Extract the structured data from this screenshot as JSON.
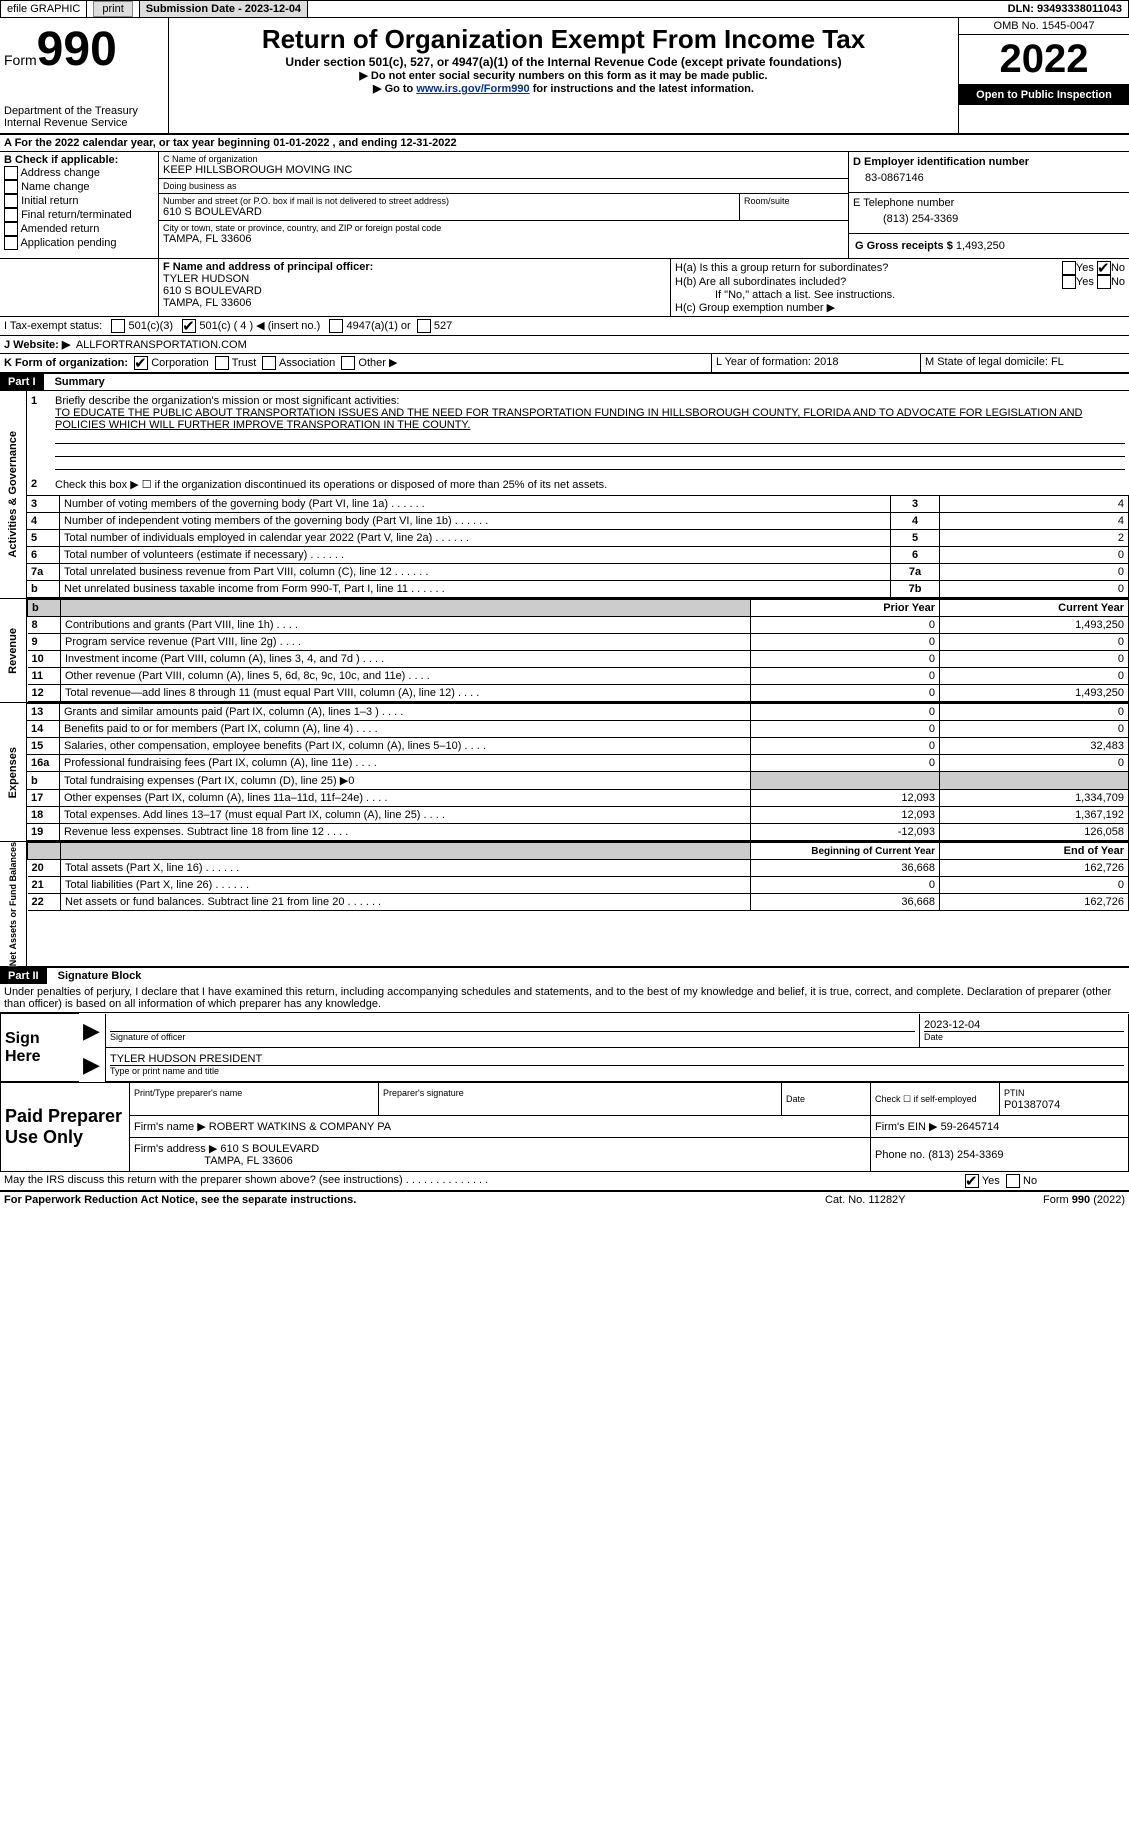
{
  "topbar": {
    "efile": "efile GRAPHIC",
    "print": "print",
    "subdate_label": "Submission Date - 2023-12-04",
    "dln_label": "DLN: 93493338011043"
  },
  "header": {
    "form_word": "Form",
    "form_num": "990",
    "title": "Return of Organization Exempt From Income Tax",
    "subtitle": "Under section 501(c), 527, or 4947(a)(1) of the Internal Revenue Code (except private foundations)",
    "note1": "▶ Do not enter social security numbers on this form as it may be made public.",
    "note2_pre": "▶ Go to ",
    "note2_link": "www.irs.gov/Form990",
    "note2_post": " for instructions and the latest information.",
    "omb": "OMB No. 1545-0047",
    "year": "2022",
    "inspection": "Open to Public Inspection",
    "dept": "Department of the Treasury",
    "irs": "Internal Revenue Service"
  },
  "lineA": "A For the 2022 calendar year, or tax year beginning 01-01-2022    , and ending 12-31-2022",
  "boxB": {
    "label": "B Check if applicable:",
    "items": [
      "Address change",
      "Name change",
      "Initial return",
      "Final return/terminated",
      "Amended return",
      "Application pending"
    ]
  },
  "boxC": {
    "name_label": "C Name of organization",
    "name": "KEEP HILLSBOROUGH MOVING INC",
    "dba_label": "Doing business as",
    "dba": "",
    "addr_label": "Number and street (or P.O. box if mail is not delivered to street address)",
    "addr": "610 S BOULEVARD",
    "room_label": "Room/suite",
    "city_label": "City or town, state or province, country, and ZIP or foreign postal code",
    "city": "TAMPA, FL  33606"
  },
  "boxD": {
    "label": "D Employer identification number",
    "value": "83-0867146"
  },
  "boxE": {
    "label": "E Telephone number",
    "value": "(813) 254-3369"
  },
  "boxG": {
    "label": "G Gross receipts $",
    "value": "1,493,250"
  },
  "boxF": {
    "label": "F Name and address of principal officer:",
    "name": "TYLER HUDSON",
    "addr": "610 S BOULEVARD",
    "city": "TAMPA, FL  33606"
  },
  "boxH": {
    "a": "H(a)  Is this a group return for subordinates?",
    "b": "H(b)  Are all subordinates included?",
    "note": "If \"No,\" attach a list. See instructions.",
    "c": "H(c)  Group exemption number ▶"
  },
  "yes": "Yes",
  "no": "No",
  "boxI": {
    "label": "I   Tax-exempt status:",
    "c3": "501(c)(3)",
    "c": "501(c) ( 4 ) ◀ (insert no.)",
    "a1": "4947(a)(1) or",
    "527": "527"
  },
  "boxJ": {
    "label": "J   Website: ▶",
    "value": "ALLFORTRANSPORTATION.COM"
  },
  "boxK": {
    "label": "K Form of organization:",
    "corp": "Corporation",
    "trust": "Trust",
    "assoc": "Association",
    "other": "Other ▶"
  },
  "boxL": {
    "label": "L Year of formation: 2018"
  },
  "boxM": {
    "label": "M State of legal domicile: FL"
  },
  "part1": {
    "label": "Part I",
    "title": "Summary"
  },
  "summary": {
    "l1_label": "Briefly describe the organization's mission or most significant activities:",
    "l1_text": "TO EDUCATE THE PUBLIC ABOUT TRANSPORTATION ISSUES AND THE NEED FOR TRANSPORTATION FUNDING IN HILLSBOROUGH COUNTY, FLORIDA AND TO ADVOCATE FOR LEGISLATION AND POLICIES WHICH WILL FURTHER IMPROVE TRANSPORATION IN THE COUNTY.",
    "l2": "Check this box ▶ ☐ if the organization discontinued its operations or disposed of more than 25% of its net assets.",
    "rows": [
      {
        "n": "3",
        "label": "Number of voting members of the governing body (Part VI, line 1a)",
        "box": "3",
        "val": "4"
      },
      {
        "n": "4",
        "label": "Number of independent voting members of the governing body (Part VI, line 1b)",
        "box": "4",
        "val": "4"
      },
      {
        "n": "5",
        "label": "Total number of individuals employed in calendar year 2022 (Part V, line 2a)",
        "box": "5",
        "val": "2"
      },
      {
        "n": "6",
        "label": "Total number of volunteers (estimate if necessary)",
        "box": "6",
        "val": "0"
      },
      {
        "n": "7a",
        "label": "Total unrelated business revenue from Part VIII, column (C), line 12",
        "box": "7a",
        "val": "0"
      },
      {
        "n": "b",
        "label": "Net unrelated business taxable income from Form 990-T, Part I, line 11",
        "box": "7b",
        "val": "0"
      }
    ],
    "prior_year": "Prior Year",
    "current_year": "Current Year",
    "revenue_rows": [
      {
        "n": "8",
        "label": "Contributions and grants (Part VIII, line 1h)",
        "py": "0",
        "cy": "1,493,250"
      },
      {
        "n": "9",
        "label": "Program service revenue (Part VIII, line 2g)",
        "py": "0",
        "cy": "0"
      },
      {
        "n": "10",
        "label": "Investment income (Part VIII, column (A), lines 3, 4, and 7d )",
        "py": "0",
        "cy": "0"
      },
      {
        "n": "11",
        "label": "Other revenue (Part VIII, column (A), lines 5, 6d, 8c, 9c, 10c, and 11e)",
        "py": "0",
        "cy": "0"
      },
      {
        "n": "12",
        "label": "Total revenue—add lines 8 through 11 (must equal Part VIII, column (A), line 12)",
        "py": "0",
        "cy": "1,493,250"
      }
    ],
    "expense_rows": [
      {
        "n": "13",
        "label": "Grants and similar amounts paid (Part IX, column (A), lines 1–3 )",
        "py": "0",
        "cy": "0"
      },
      {
        "n": "14",
        "label": "Benefits paid to or for members (Part IX, column (A), line 4)",
        "py": "0",
        "cy": "0"
      },
      {
        "n": "15",
        "label": "Salaries, other compensation, employee benefits (Part IX, column (A), lines 5–10)",
        "py": "0",
        "cy": "32,483"
      },
      {
        "n": "16a",
        "label": "Professional fundraising fees (Part IX, column (A), line 11e)",
        "py": "0",
        "cy": "0"
      },
      {
        "n": "b",
        "label": "Total fundraising expenses (Part IX, column (D), line 25) ▶0",
        "py": "",
        "cy": "",
        "shaded": true
      },
      {
        "n": "17",
        "label": "Other expenses (Part IX, column (A), lines 11a–11d, 11f–24e)",
        "py": "12,093",
        "cy": "1,334,709"
      },
      {
        "n": "18",
        "label": "Total expenses. Add lines 13–17 (must equal Part IX, column (A), line 25)",
        "py": "12,093",
        "cy": "1,367,192"
      },
      {
        "n": "19",
        "label": "Revenue less expenses. Subtract line 18 from line 12",
        "py": "-12,093",
        "cy": "126,058"
      }
    ],
    "boy": "Beginning of Current Year",
    "eoy": "End of Year",
    "netassets_rows": [
      {
        "n": "20",
        "label": "Total assets (Part X, line 16)",
        "py": "36,668",
        "cy": "162,726"
      },
      {
        "n": "21",
        "label": "Total liabilities (Part X, line 26)",
        "py": "0",
        "cy": "0"
      },
      {
        "n": "22",
        "label": "Net assets or fund balances. Subtract line 21 from line 20",
        "py": "36,668",
        "cy": "162,726"
      }
    ]
  },
  "sidebar": {
    "activities": "Activities & Governance",
    "revenue": "Revenue",
    "expenses": "Expenses",
    "netassets": "Net Assets or Fund Balances"
  },
  "part2": {
    "label": "Part II",
    "title": "Signature Block"
  },
  "perjury": "Under penalties of perjury, I declare that I have examined this return, including accompanying schedules and statements, and to the best of my knowledge and belief, it is true, correct, and complete. Declaration of preparer (other than officer) is based on all information of which preparer has any knowledge.",
  "sign": {
    "here": "Sign Here",
    "sig_officer": "Signature of officer",
    "date": "Date",
    "date_val": "2023-12-04",
    "name_title": "TYLER HUDSON  PRESIDENT",
    "type_name": "Type or print name and title"
  },
  "paid": {
    "label": "Paid Preparer Use Only",
    "print_name": "Print/Type preparer's name",
    "prep_sig": "Preparer's signature",
    "date": "Date",
    "check_self": "Check ☐ if self-employed",
    "ptin_label": "PTIN",
    "ptin": "P01387074",
    "firm_name_label": "Firm's name    ▶",
    "firm_name": "ROBERT WATKINS & COMPANY PA",
    "firm_ein_label": "Firm's EIN ▶",
    "firm_ein": "59-2645714",
    "firm_addr_label": "Firm's address ▶",
    "firm_addr1": "610 S BOULEVARD",
    "firm_addr2": "TAMPA, FL  33606",
    "phone_label": "Phone no.",
    "phone": "(813) 254-3369"
  },
  "footer": {
    "discuss": "May the IRS discuss this return with the preparer shown above? (see instructions)",
    "paperwork": "For Paperwork Reduction Act Notice, see the separate instructions.",
    "cat": "Cat. No. 11282Y",
    "form": "Form 990 (2022)"
  }
}
